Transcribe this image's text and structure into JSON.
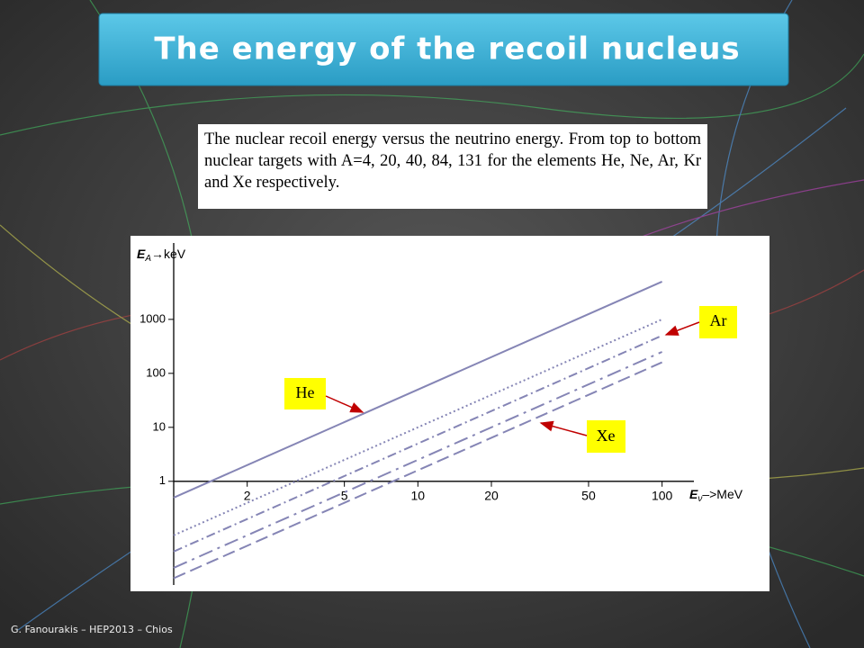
{
  "slide": {
    "title": "The energy of the recoil nucleus",
    "caption": "The nuclear recoil energy versus the neutrino energy. From top to bottom nuclear targets with A=4, 20, 40, 84, 131 for the elements He, Ne, Ar, Kr and Xe respectively.",
    "footer": "G. Fanourakis – HEP2013 – Chios"
  },
  "chart_data": {
    "type": "line",
    "log_x": true,
    "log_y": true,
    "y_label": {
      "symbol": "E",
      "subscript": "A",
      "unit": "→keV"
    },
    "x_label": {
      "symbol": "E",
      "subscript": "ν",
      "unit": "–>MeV"
    },
    "x": [
      1,
      100
    ],
    "xlim": [
      1,
      135
    ],
    "xticks": [
      2,
      5,
      10,
      20,
      50,
      100
    ],
    "ylim": [
      0.012,
      26000
    ],
    "yticks": [
      1,
      10,
      100,
      1000
    ],
    "color": "#8585b5",
    "series": [
      {
        "name": "He",
        "dash": "solid",
        "values": [
          0.5,
          5000
        ]
      },
      {
        "dash": "dotted",
        "values": [
          0.1,
          1000
        ]
      },
      {
        "name": "Ar",
        "dash": "dashdot",
        "values": [
          0.05,
          500
        ]
      },
      {
        "dash": "dashdot2",
        "values": [
          0.025,
          250
        ]
      },
      {
        "name": "Xe",
        "dash": "dashed",
        "values": [
          0.016,
          160
        ]
      }
    ]
  }
}
